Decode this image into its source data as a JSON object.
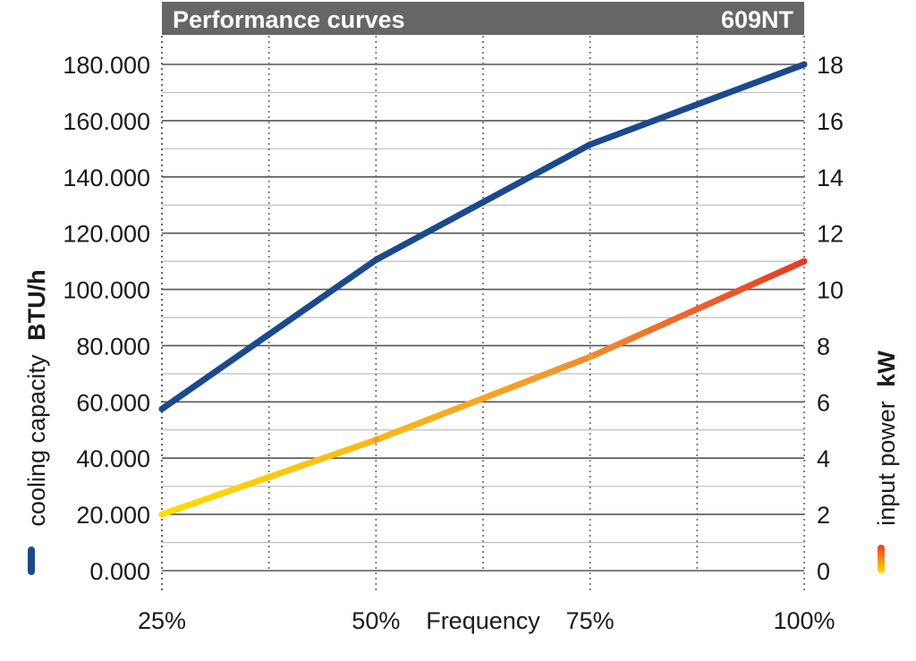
{
  "chart_data": {
    "type": "line",
    "title": "Performance curves",
    "model": "609NT",
    "x": [
      "25%",
      "50%",
      "75%",
      "100%"
    ],
    "xlabel": "Frequency",
    "y_left": {
      "label_prefix": "cooling capacity",
      "label_unit": "BTU/h",
      "ticks": [
        "0.000",
        "20.000",
        "40.000",
        "60.000",
        "80.000",
        "100.000",
        "120.000",
        "140.000",
        "160.000",
        "180.000"
      ],
      "range": [
        0,
        180000
      ]
    },
    "y_right": {
      "label_prefix": "input power",
      "label_unit": "kW",
      "ticks": [
        "0",
        "2",
        "4",
        "6",
        "8",
        "10",
        "12",
        "14",
        "16",
        "18"
      ],
      "range": [
        0,
        18
      ]
    },
    "series": [
      {
        "axis": "left",
        "values": [
          57500,
          110500,
          151500,
          180000
        ],
        "color": "#1b4a8c"
      },
      {
        "axis": "right",
        "values": [
          2.0,
          4.65,
          7.6,
          11.0
        ],
        "gradient": [
          "#ffdd00",
          "#f39a2d",
          "#e63b28"
        ]
      }
    ],
    "grid": true
  }
}
